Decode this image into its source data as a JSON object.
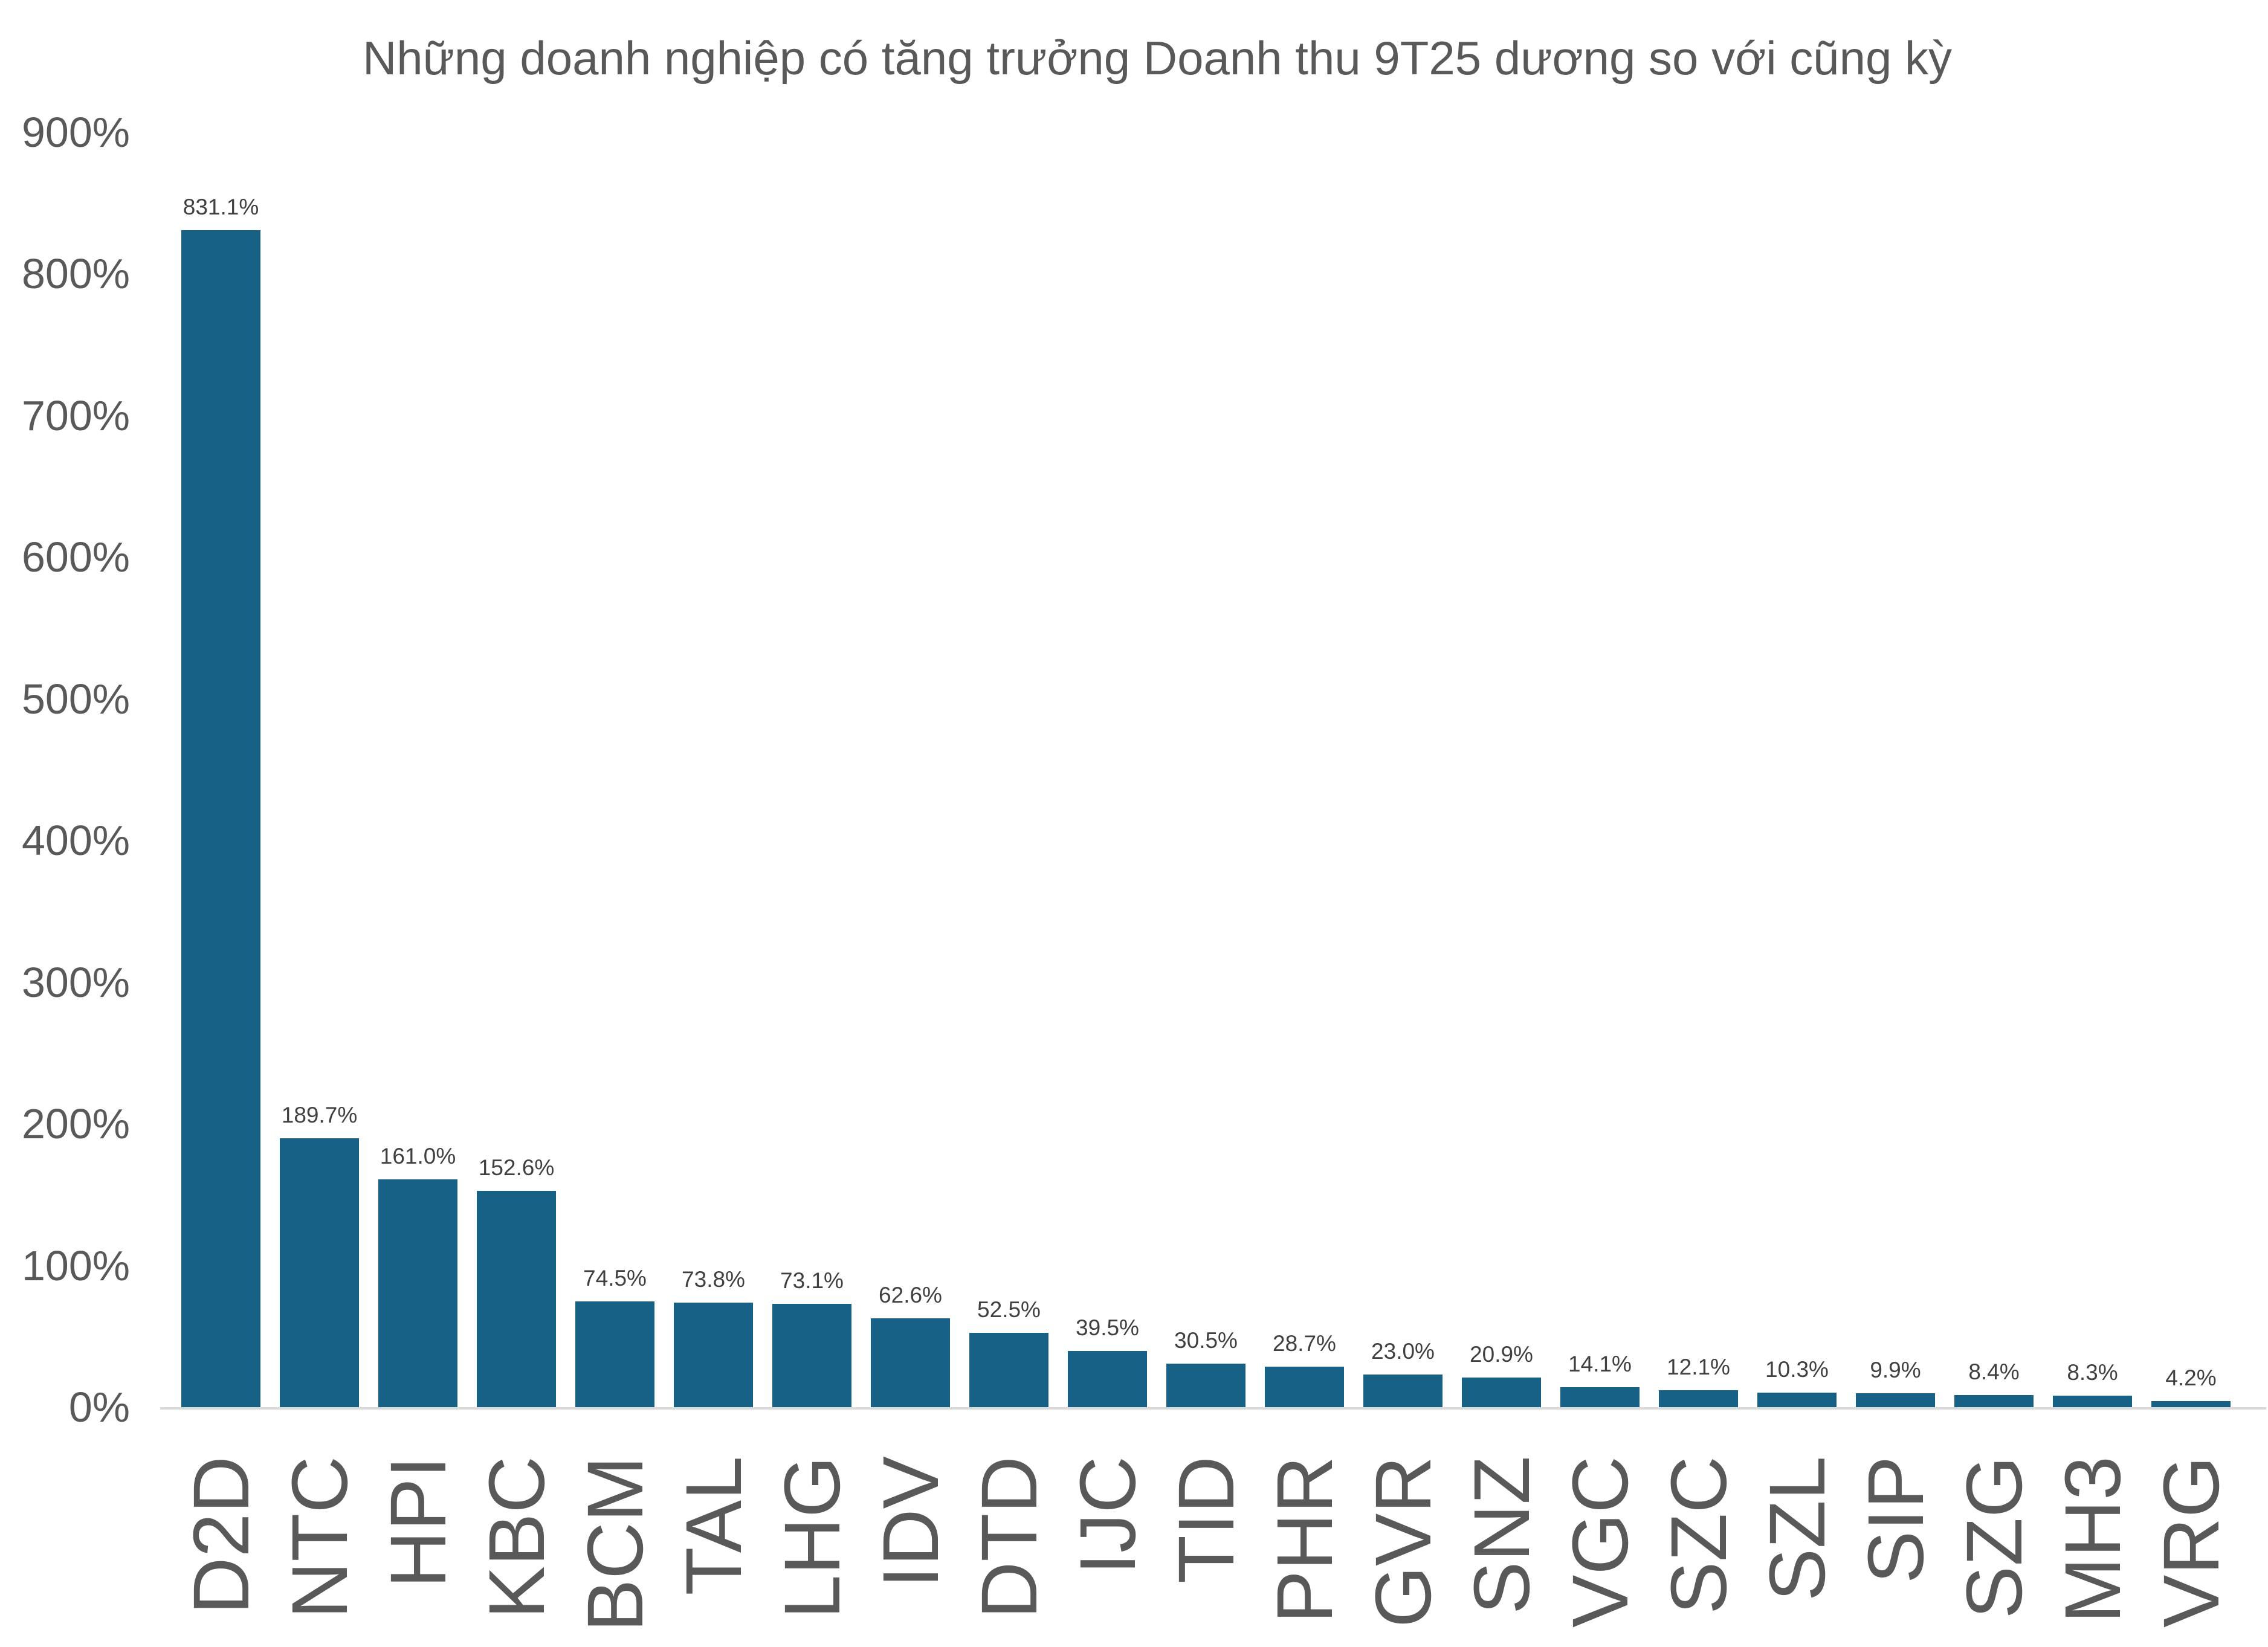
{
  "title": "Những doanh nghiệp có tăng trưởng Doanh thu 9T25 dương so với cũng kỳ",
  "colors": {
    "background": "#FFFFFF",
    "bar": "#166185",
    "axis_line": "#D9D9D9",
    "title_text": "#595959",
    "tick_text": "#595959",
    "value_label_text": "#404040"
  },
  "y_axis": {
    "tick_labels": [
      "900%",
      "800%",
      "700%",
      "600%",
      "500%",
      "400%",
      "300%",
      "200%",
      "100%",
      "0%"
    ],
    "tick_values": [
      900,
      800,
      700,
      600,
      500,
      400,
      300,
      200,
      100,
      0
    ]
  },
  "chart_data": {
    "type": "bar",
    "title": "Những doanh nghiệp có tăng trưởng Doanh thu 9T25 dương so với cũng kỳ",
    "categories": [
      "D2D",
      "NTC",
      "HPI",
      "KBC",
      "BCM",
      "TAL",
      "LHG",
      "IDV",
      "DTD",
      "IJC",
      "TID",
      "PHR",
      "GVR",
      "SNZ",
      "VGC",
      "SZC",
      "SZL",
      "SIP",
      "SZG",
      "MH3",
      "VRG"
    ],
    "values": [
      831.1,
      189.7,
      161.0,
      152.6,
      74.5,
      73.8,
      73.1,
      62.6,
      52.5,
      39.5,
      30.5,
      28.7,
      23.0,
      20.9,
      14.1,
      12.1,
      10.3,
      9.9,
      8.4,
      8.3,
      4.2
    ],
    "value_labels": [
      "831.1%",
      "189.7%",
      "161.0%",
      "152.6%",
      "74.5%",
      "73.8%",
      "73.1%",
      "62.6%",
      "52.5%",
      "39.5%",
      "30.5%",
      "28.7%",
      "23.0%",
      "20.9%",
      "14.1%",
      "12.1%",
      "10.3%",
      "9.9%",
      "8.4%",
      "8.3%",
      "4.2%"
    ],
    "xlabel": "",
    "ylabel": "",
    "ylim": [
      0,
      900
    ],
    "y_tick_step": 100,
    "grid": false,
    "legend": false,
    "data_labels": true,
    "bar_color": "#166185"
  }
}
